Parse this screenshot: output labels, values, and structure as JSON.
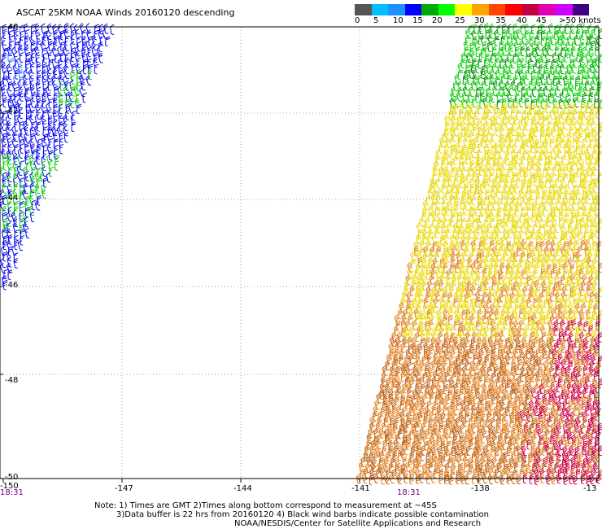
{
  "title": "ASCAT 25KM NOAA Winds 20160120 descending",
  "colorbar": {
    "colors": [
      "#555555",
      "#00bfff",
      "#1e90ff",
      "#0000ff",
      "#00aa00",
      "#00ff00",
      "#ffff00",
      "#ffa500",
      "#ff4500",
      "#ff0000",
      "#c00040",
      "#e000b0",
      "#cc00ff",
      "#400080"
    ],
    "labels": [
      "0",
      "5",
      "10",
      "15",
      "20",
      "25",
      "30",
      "35",
      "40",
      "45",
      ">50 knots"
    ]
  },
  "map": {
    "lat_labels": [
      "-40",
      "-42",
      "-44",
      "-46",
      "-48",
      "-50"
    ],
    "lon_labels": [
      "-150",
      "-147",
      "-144",
      "-141",
      "-138",
      "-13"
    ],
    "pass_times": [
      "18:31",
      "18:31"
    ],
    "barb_colors": {
      "blue": "#0000ee",
      "green": "#00cc00",
      "darkgreen": "#008800",
      "yellow": "#e8d800",
      "orange": "#e08020",
      "darkorange": "#c06010",
      "red": "#cc0044"
    }
  },
  "notes": {
    "line1": "Note: 1) Times are GMT 2)Times along bottom correspond to measurement at ~45S",
    "line2": "3)Data buffer is 22 hrs from 20160120 4) Black wind barbs indicate possible contamination",
    "line3": "NOAA/NESDIS/Center for Satellite Applications and Research"
  }
}
